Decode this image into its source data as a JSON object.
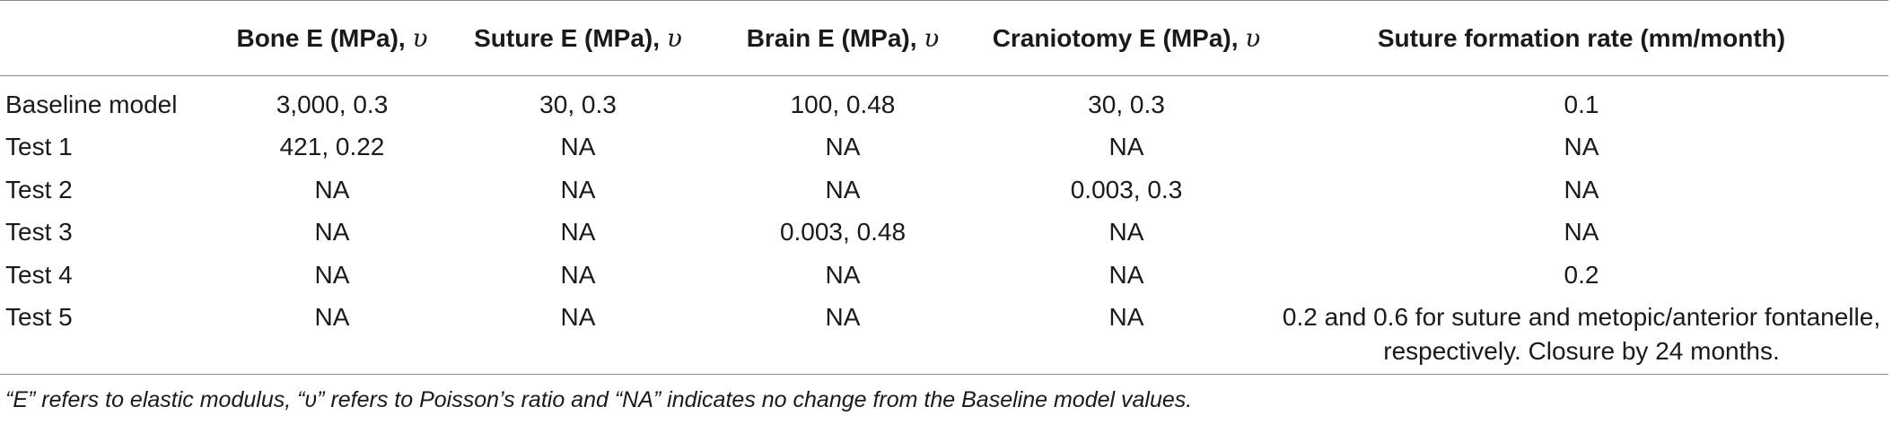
{
  "table": {
    "headers": [
      {
        "text": "",
        "nu": ""
      },
      {
        "text": "Bone E (MPa), ",
        "nu": "υ"
      },
      {
        "text": "Suture E (MPa), ",
        "nu": "υ"
      },
      {
        "text": "Brain E (MPa), ",
        "nu": "υ"
      },
      {
        "text": "Craniotomy E (MPa), ",
        "nu": "υ"
      },
      {
        "text": "Suture formation rate (mm/month)",
        "nu": ""
      }
    ],
    "rows": [
      [
        "Baseline model",
        "3,000, 0.3",
        "30, 0.3",
        "100, 0.48",
        "30, 0.3",
        "0.1"
      ],
      [
        "Test 1",
        "421, 0.22",
        "NA",
        "NA",
        "NA",
        "NA"
      ],
      [
        "Test 2",
        "NA",
        "NA",
        "NA",
        "0.003, 0.3",
        "NA"
      ],
      [
        "Test 3",
        "NA",
        "NA",
        "0.003, 0.48",
        "NA",
        "NA"
      ],
      [
        "Test 4",
        "NA",
        "NA",
        "NA",
        "NA",
        "0.2"
      ],
      [
        "Test 5",
        "NA",
        "NA",
        "NA",
        "NA",
        "0.2 and 0.6 for suture and metopic/anterior fontanelle, respectively. Closure by 24 months."
      ]
    ]
  },
  "footnote": "“E” refers to elastic modulus, “υ” refers to Poisson’s ratio and “NA” indicates no change from the Baseline model values."
}
